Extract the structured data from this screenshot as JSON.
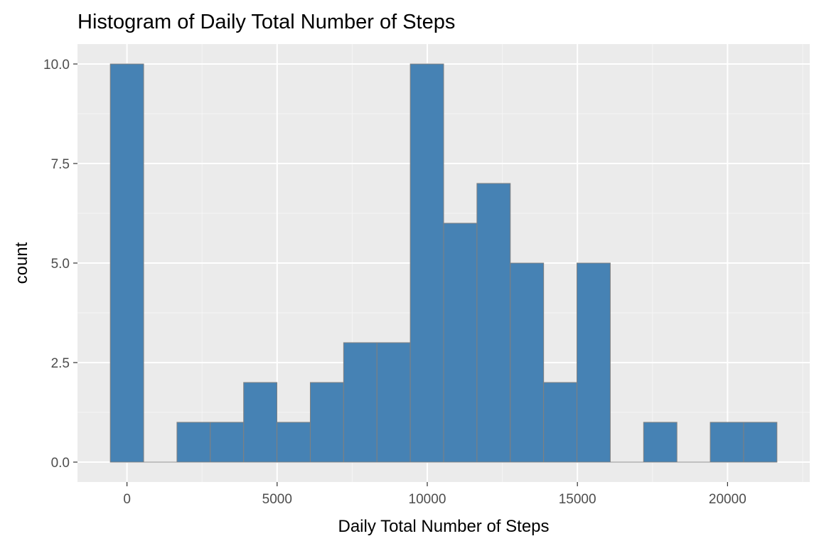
{
  "chart_data": {
    "type": "bar",
    "title": "Histogram of Daily Total Number of Steps",
    "xlabel": "Daily Total Number of Steps",
    "ylabel": "count",
    "bin_width": 1110,
    "bins": [
      {
        "x_start": -555,
        "x_end": 555,
        "count": 10
      },
      {
        "x_start": 555,
        "x_end": 1665,
        "count": 0
      },
      {
        "x_start": 1665,
        "x_end": 2775,
        "count": 1
      },
      {
        "x_start": 2775,
        "x_end": 3885,
        "count": 1
      },
      {
        "x_start": 3885,
        "x_end": 4995,
        "count": 2
      },
      {
        "x_start": 4995,
        "x_end": 6105,
        "count": 1
      },
      {
        "x_start": 6105,
        "x_end": 7215,
        "count": 2
      },
      {
        "x_start": 7215,
        "x_end": 8325,
        "count": 3
      },
      {
        "x_start": 8325,
        "x_end": 9435,
        "count": 3
      },
      {
        "x_start": 9435,
        "x_end": 10545,
        "count": 10
      },
      {
        "x_start": 10545,
        "x_end": 11655,
        "count": 6
      },
      {
        "x_start": 11655,
        "x_end": 12765,
        "count": 7
      },
      {
        "x_start": 12765,
        "x_end": 13875,
        "count": 5
      },
      {
        "x_start": 13875,
        "x_end": 14985,
        "count": 2
      },
      {
        "x_start": 14985,
        "x_end": 16095,
        "count": 5
      },
      {
        "x_start": 16095,
        "x_end": 17205,
        "count": 0
      },
      {
        "x_start": 17205,
        "x_end": 18315,
        "count": 1
      },
      {
        "x_start": 18315,
        "x_end": 19425,
        "count": 0
      },
      {
        "x_start": 19425,
        "x_end": 20535,
        "count": 1
      },
      {
        "x_start": 20535,
        "x_end": 21645,
        "count": 1
      }
    ],
    "xlim": [
      -1648,
      22738
    ],
    "ylim": [
      -0.5,
      10.5
    ],
    "x_ticks": [
      0,
      5000,
      10000,
      15000,
      20000
    ],
    "x_tick_labels": [
      "0",
      "5000",
      "10000",
      "15000",
      "20000"
    ],
    "y_ticks": [
      0,
      2.5,
      5,
      7.5,
      10
    ],
    "y_tick_labels": [
      "0.0",
      "2.5",
      "5.0",
      "7.5",
      "10.0"
    ],
    "grid": true,
    "colors": {
      "bar_fill": "#4682b4",
      "bar_outline": "#808080",
      "panel_background": "#ebebeb",
      "grid_major": "#ffffff",
      "grid_minor": "#f5f5f5",
      "tick_text": "#4d4d4d",
      "tick_mark": "#333333"
    }
  }
}
